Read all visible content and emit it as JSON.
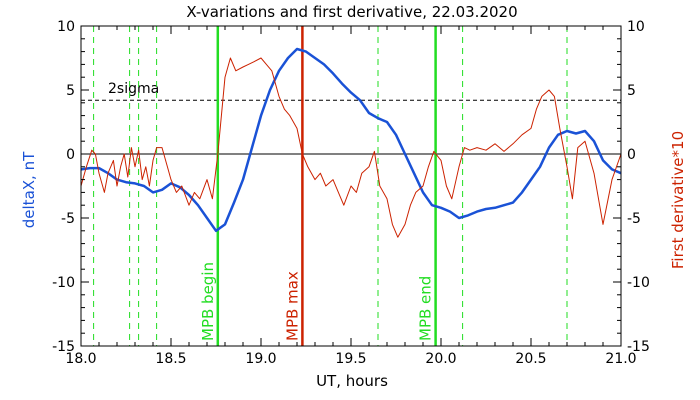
{
  "chart_data": {
    "type": "line",
    "title": "X-variations and first derivative, 22.03.2020",
    "xlabel": "UT, hours",
    "ylabel_left": "deltaX, nT",
    "ylabel_right": "First derivative*10",
    "xlim": [
      18.0,
      21.0
    ],
    "ylim": [
      -15,
      10
    ],
    "x_ticks": [
      "18.0",
      "18.5",
      "19.0",
      "19.5",
      "20.0",
      "20.5",
      "21.0"
    ],
    "y_ticks": [
      "10",
      "5",
      "0",
      "-5",
      "-10",
      "-15"
    ],
    "sigma_level": 4.2,
    "sigma_label": "2sigma",
    "zero_line": 0,
    "colors": {
      "deltaX": "#1a52d6",
      "derivative": "#cc2200",
      "mpb_edge": "#22dd22",
      "mpb_max": "#cc2200",
      "axis_left_label": "#1a52d6",
      "axis_right_label": "#cc2200"
    },
    "markers": [
      {
        "x": 18.76,
        "label": "MPB begin",
        "type": "mpb_edge"
      },
      {
        "x": 19.23,
        "label": "MPB max",
        "type": "mpb_max"
      },
      {
        "x": 19.97,
        "label": "MPB end",
        "type": "mpb_edge"
      }
    ],
    "dashed_markers": [
      18.07,
      18.27,
      18.32,
      18.42,
      19.65,
      20.12,
      20.7
    ],
    "series": [
      {
        "key": "deltaX",
        "x": [
          18.0,
          18.05,
          18.1,
          18.15,
          18.2,
          18.25,
          18.3,
          18.35,
          18.4,
          18.45,
          18.5,
          18.55,
          18.6,
          18.65,
          18.7,
          18.75,
          18.8,
          18.85,
          18.9,
          18.95,
          19.0,
          19.05,
          19.1,
          19.15,
          19.2,
          19.25,
          19.3,
          19.35,
          19.4,
          19.45,
          19.5,
          19.55,
          19.6,
          19.65,
          19.7,
          19.75,
          19.8,
          19.85,
          19.9,
          19.95,
          20.0,
          20.05,
          20.1,
          20.15,
          20.2,
          20.25,
          20.3,
          20.35,
          20.4,
          20.45,
          20.5,
          20.55,
          20.6,
          20.65,
          20.7,
          20.75,
          20.8,
          20.85,
          20.9,
          20.95,
          21.0
        ],
        "values": [
          -1.2,
          -1.1,
          -1.1,
          -1.5,
          -2.0,
          -2.2,
          -2.3,
          -2.5,
          -3.0,
          -2.8,
          -2.3,
          -2.6,
          -3.2,
          -4.0,
          -5.0,
          -6.0,
          -5.5,
          -3.8,
          -2.0,
          0.5,
          3.0,
          5.0,
          6.5,
          7.5,
          8.2,
          8.0,
          7.5,
          7.0,
          6.3,
          5.5,
          4.8,
          4.2,
          3.2,
          2.8,
          2.5,
          1.5,
          0.0,
          -1.5,
          -3.0,
          -4.0,
          -4.2,
          -4.5,
          -5.0,
          -4.8,
          -4.5,
          -4.3,
          -4.2,
          -4.0,
          -3.8,
          -3.0,
          -2.0,
          -1.0,
          0.5,
          1.5,
          1.8,
          1.6,
          1.8,
          1.0,
          -0.5,
          -1.2,
          -1.5
        ]
      },
      {
        "key": "derivative",
        "x": [
          18.0,
          18.03,
          18.06,
          18.08,
          18.1,
          18.13,
          18.15,
          18.18,
          18.2,
          18.22,
          18.24,
          18.26,
          18.28,
          18.3,
          18.32,
          18.34,
          18.36,
          18.38,
          18.4,
          18.42,
          18.45,
          18.48,
          18.5,
          18.53,
          18.56,
          18.6,
          18.63,
          18.66,
          18.7,
          18.73,
          18.76,
          18.78,
          18.8,
          18.83,
          18.86,
          18.9,
          18.93,
          18.96,
          19.0,
          19.03,
          19.06,
          19.1,
          19.13,
          19.16,
          19.2,
          19.23,
          19.26,
          19.3,
          19.33,
          19.36,
          19.4,
          19.43,
          19.46,
          19.5,
          19.53,
          19.56,
          19.6,
          19.63,
          19.66,
          19.7,
          19.73,
          19.76,
          19.8,
          19.83,
          19.86,
          19.9,
          19.93,
          19.96,
          20.0,
          20.03,
          20.06,
          20.1,
          20.13,
          20.16,
          20.2,
          20.25,
          20.3,
          20.35,
          20.4,
          20.45,
          20.5,
          20.53,
          20.56,
          20.6,
          20.63,
          20.66,
          20.7,
          20.73,
          20.76,
          20.8,
          20.85,
          20.9,
          20.95,
          21.0
        ],
        "values": [
          -2.5,
          -1.0,
          0.3,
          0.0,
          -1.5,
          -3.0,
          -1.5,
          -0.5,
          -2.5,
          -1.0,
          0.0,
          -1.8,
          0.5,
          -1.0,
          0.3,
          -2.0,
          -1.0,
          -2.5,
          -0.5,
          0.5,
          0.5,
          -1.0,
          -2.0,
          -3.0,
          -2.5,
          -4.0,
          -3.0,
          -3.5,
          -2.0,
          -3.5,
          0.0,
          3.0,
          6.0,
          7.5,
          6.5,
          6.8,
          7.0,
          7.2,
          7.5,
          7.0,
          6.5,
          4.5,
          3.5,
          3.0,
          2.0,
          0.0,
          -1.0,
          -2.0,
          -1.5,
          -2.5,
          -2.0,
          -3.0,
          -4.0,
          -2.5,
          -3.0,
          -1.5,
          -1.0,
          0.2,
          -2.5,
          -3.5,
          -5.5,
          -6.5,
          -5.5,
          -4.0,
          -3.0,
          -2.5,
          -1.0,
          0.2,
          -0.5,
          -2.5,
          -3.5,
          -1.0,
          0.5,
          0.3,
          0.5,
          0.3,
          0.8,
          0.2,
          0.8,
          1.5,
          2.0,
          3.5,
          4.5,
          5.0,
          4.5,
          2.0,
          -1.0,
          -3.5,
          0.5,
          1.0,
          -1.5,
          -5.5,
          -2.0,
          0.0
        ]
      }
    ]
  }
}
